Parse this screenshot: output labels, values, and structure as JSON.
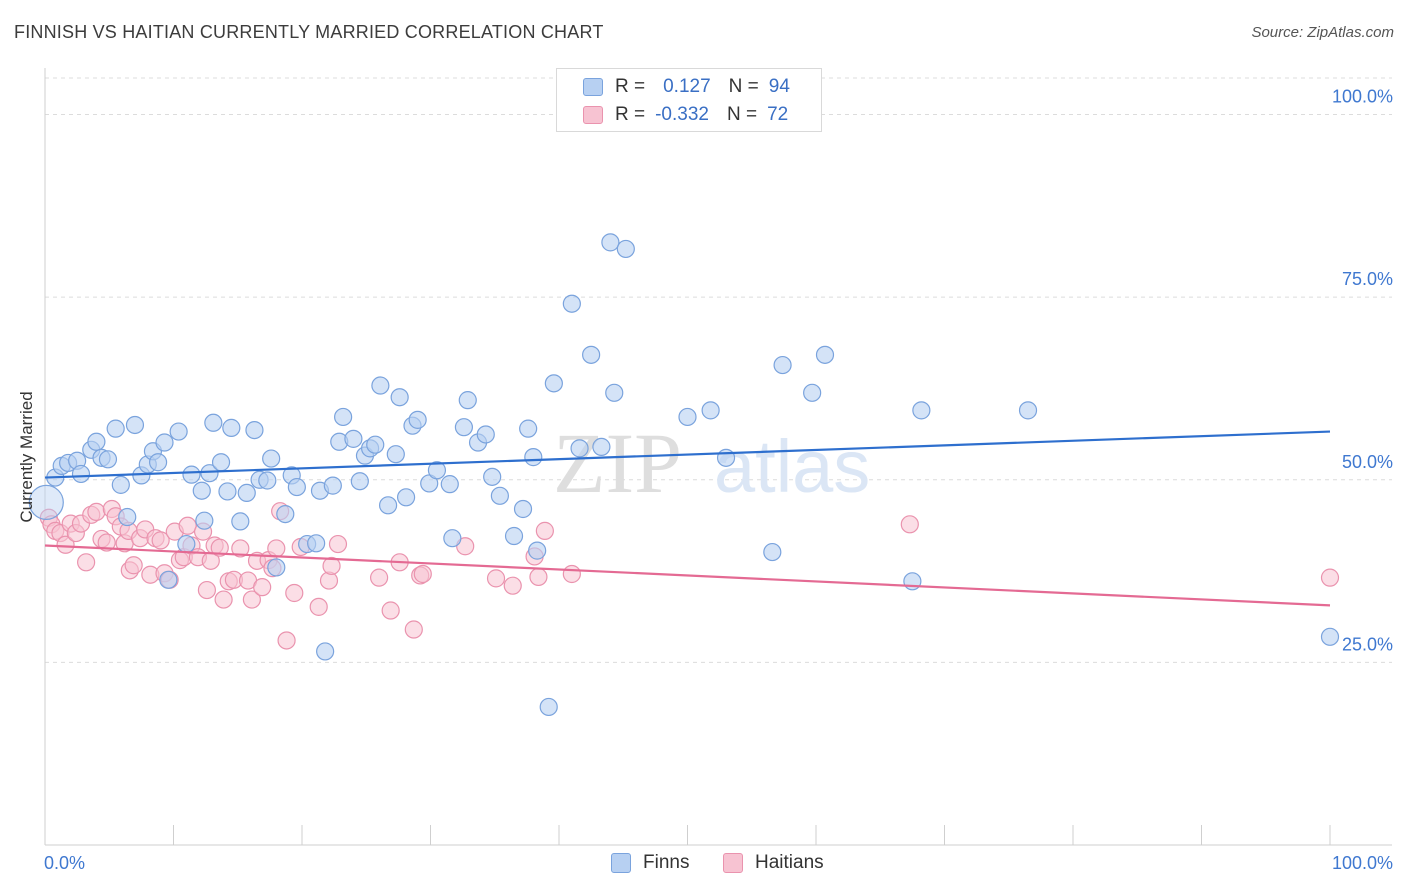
{
  "header": {
    "title": "FINNISH VS HAITIAN CURRENTLY MARRIED CORRELATION CHART",
    "source": "Source: ZipAtlas.com"
  },
  "watermark": {
    "part1": "ZIP",
    "part2": "atlas"
  },
  "legend": {
    "finns": {
      "r_label": "R =",
      "r_value": "0.127",
      "n_label": "N =",
      "n_value": "94"
    },
    "haitians": {
      "r_label": "R =",
      "r_value": "-0.332",
      "n_label": "N =",
      "n_value": "72"
    }
  },
  "bottom_legend": {
    "finns": "Finns",
    "haitians": "Haitians"
  },
  "colors": {
    "finns_fill": "#b7d0f2",
    "finns_stroke": "#7aa3dd",
    "finns_line": "#2e6fce",
    "haitians_fill": "#f7c3d2",
    "haitians_stroke": "#ea93ae",
    "haitians_line": "#e46a93",
    "tick_label": "#3f78d0",
    "grid": "#dcdcdc"
  },
  "chart_data": {
    "type": "scatter",
    "title": "FINNISH VS HAITIAN CURRENTLY MARRIED CORRELATION CHART",
    "xlabel": "",
    "ylabel": "Currently Married",
    "xlim": [
      0,
      100
    ],
    "ylim": [
      0,
      105
    ],
    "x_tick_labels": [
      "0.0%",
      "100.0%"
    ],
    "y_ticks": [
      25,
      50,
      75,
      100
    ],
    "y_tick_labels": [
      "25.0%",
      "50.0%",
      "75.0%",
      "100.0%"
    ],
    "grid": true,
    "series": [
      {
        "name": "Finns",
        "trend": [
          [
            0,
            50.3
          ],
          [
            100,
            56.6
          ]
        ],
        "points": [
          [
            0.1,
            46.9
          ],
          [
            0.8,
            50.3
          ],
          [
            1.3,
            51.9
          ],
          [
            1.8,
            52.3
          ],
          [
            2.5,
            52.6
          ],
          [
            2.8,
            50.8
          ],
          [
            3.6,
            54.1
          ],
          [
            4.0,
            55.2
          ],
          [
            4.4,
            53.0
          ],
          [
            4.9,
            52.8
          ],
          [
            5.5,
            57.0
          ],
          [
            5.9,
            49.3
          ],
          [
            6.4,
            44.9
          ],
          [
            7.0,
            57.5
          ],
          [
            7.5,
            50.6
          ],
          [
            8.0,
            52.1
          ],
          [
            8.4,
            53.9
          ],
          [
            8.8,
            52.4
          ],
          [
            9.3,
            55.1
          ],
          [
            9.6,
            36.3
          ],
          [
            10.4,
            56.6
          ],
          [
            11.0,
            41.2
          ],
          [
            11.4,
            50.7
          ],
          [
            12.2,
            48.5
          ],
          [
            12.4,
            44.4
          ],
          [
            12.8,
            50.9
          ],
          [
            13.1,
            57.8
          ],
          [
            13.7,
            52.4
          ],
          [
            14.2,
            48.4
          ],
          [
            14.5,
            57.1
          ],
          [
            15.2,
            44.3
          ],
          [
            15.7,
            48.2
          ],
          [
            16.3,
            56.8
          ],
          [
            16.7,
            50.0
          ],
          [
            17.3,
            49.9
          ],
          [
            17.6,
            52.9
          ],
          [
            18.0,
            38.0
          ],
          [
            18.7,
            45.3
          ],
          [
            19.2,
            50.6
          ],
          [
            19.6,
            49.0
          ],
          [
            20.4,
            41.2
          ],
          [
            21.1,
            41.3
          ],
          [
            21.4,
            48.5
          ],
          [
            21.8,
            26.5
          ],
          [
            22.4,
            49.2
          ],
          [
            22.9,
            55.2
          ],
          [
            23.2,
            58.6
          ],
          [
            24.0,
            55.6
          ],
          [
            24.5,
            49.8
          ],
          [
            24.9,
            53.3
          ],
          [
            25.3,
            54.3
          ],
          [
            25.7,
            54.8
          ],
          [
            26.1,
            62.9
          ],
          [
            26.7,
            46.5
          ],
          [
            27.3,
            53.5
          ],
          [
            27.6,
            61.3
          ],
          [
            28.1,
            47.6
          ],
          [
            28.6,
            57.4
          ],
          [
            29.0,
            58.2
          ],
          [
            29.9,
            49.5
          ],
          [
            30.5,
            51.3
          ],
          [
            31.5,
            49.4
          ],
          [
            31.7,
            42.0
          ],
          [
            32.6,
            57.2
          ],
          [
            32.9,
            60.9
          ],
          [
            33.7,
            55.1
          ],
          [
            34.3,
            56.2
          ],
          [
            34.8,
            50.4
          ],
          [
            35.4,
            47.8
          ],
          [
            36.5,
            42.3
          ],
          [
            37.2,
            46.0
          ],
          [
            37.6,
            57.0
          ],
          [
            38.0,
            53.1
          ],
          [
            38.3,
            40.3
          ],
          [
            39.2,
            18.9
          ],
          [
            39.6,
            63.2
          ],
          [
            41.0,
            74.1
          ],
          [
            41.6,
            54.3
          ],
          [
            42.5,
            67.1
          ],
          [
            43.3,
            54.5
          ],
          [
            44.0,
            82.5
          ],
          [
            44.3,
            61.9
          ],
          [
            45.2,
            81.6
          ],
          [
            50.0,
            58.6
          ],
          [
            51.8,
            59.5
          ],
          [
            53.0,
            53.0
          ],
          [
            56.6,
            40.1
          ],
          [
            57.4,
            65.7
          ],
          [
            59.7,
            61.9
          ],
          [
            60.7,
            67.1
          ],
          [
            67.5,
            36.1
          ],
          [
            68.2,
            59.5
          ],
          [
            76.5,
            59.5
          ],
          [
            100.0,
            28.5
          ]
        ]
      },
      {
        "name": "Haitians",
        "trend": [
          [
            0,
            41.0
          ],
          [
            100,
            32.8
          ]
        ],
        "points": [
          [
            0.3,
            44.8
          ],
          [
            0.5,
            43.9
          ],
          [
            0.8,
            43.0
          ],
          [
            1.2,
            42.7
          ],
          [
            1.6,
            41.1
          ],
          [
            2.0,
            44.0
          ],
          [
            2.4,
            42.7
          ],
          [
            2.8,
            44.0
          ],
          [
            3.2,
            38.7
          ],
          [
            3.6,
            45.2
          ],
          [
            4.0,
            45.6
          ],
          [
            4.4,
            41.9
          ],
          [
            4.8,
            41.4
          ],
          [
            5.2,
            46.0
          ],
          [
            5.5,
            45.0
          ],
          [
            5.9,
            43.6
          ],
          [
            6.2,
            41.3
          ],
          [
            6.5,
            43.0
          ],
          [
            6.6,
            37.6
          ],
          [
            6.9,
            38.3
          ],
          [
            7.4,
            42.0
          ],
          [
            7.8,
            43.2
          ],
          [
            8.2,
            37.0
          ],
          [
            8.6,
            42.0
          ],
          [
            9.0,
            41.7
          ],
          [
            9.3,
            37.2
          ],
          [
            9.7,
            36.3
          ],
          [
            10.1,
            42.9
          ],
          [
            10.5,
            39.0
          ],
          [
            10.8,
            39.4
          ],
          [
            11.1,
            43.7
          ],
          [
            11.4,
            41.0
          ],
          [
            11.9,
            39.4
          ],
          [
            12.3,
            42.9
          ],
          [
            12.6,
            34.9
          ],
          [
            12.9,
            38.9
          ],
          [
            13.2,
            41.0
          ],
          [
            13.6,
            40.7
          ],
          [
            13.9,
            33.6
          ],
          [
            14.3,
            36.1
          ],
          [
            14.7,
            36.3
          ],
          [
            15.2,
            40.6
          ],
          [
            15.8,
            36.2
          ],
          [
            16.1,
            33.6
          ],
          [
            16.5,
            38.9
          ],
          [
            16.9,
            35.3
          ],
          [
            17.4,
            39.0
          ],
          [
            17.7,
            37.9
          ],
          [
            18.0,
            40.6
          ],
          [
            18.3,
            45.7
          ],
          [
            18.8,
            28.0
          ],
          [
            19.4,
            34.5
          ],
          [
            19.9,
            40.8
          ],
          [
            21.3,
            32.6
          ],
          [
            22.1,
            36.2
          ],
          [
            22.3,
            38.2
          ],
          [
            22.8,
            41.2
          ],
          [
            26.0,
            36.6
          ],
          [
            26.9,
            32.1
          ],
          [
            27.6,
            38.7
          ],
          [
            28.7,
            29.5
          ],
          [
            29.2,
            36.9
          ],
          [
            29.4,
            37.1
          ],
          [
            32.7,
            40.9
          ],
          [
            35.1,
            36.5
          ],
          [
            36.4,
            35.5
          ],
          [
            38.1,
            39.5
          ],
          [
            38.4,
            36.7
          ],
          [
            38.9,
            43.0
          ],
          [
            41.0,
            37.1
          ],
          [
            67.3,
            43.9
          ],
          [
            100.0,
            36.6
          ]
        ]
      }
    ]
  }
}
